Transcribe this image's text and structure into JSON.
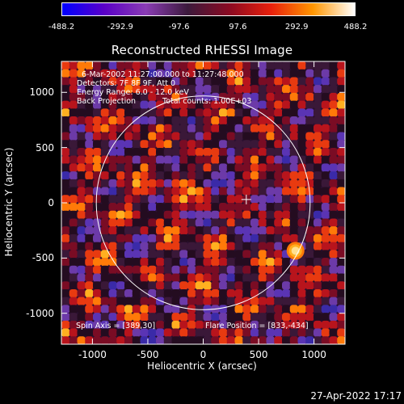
{
  "colorbar": {
    "min": -488.2,
    "max": 488.2,
    "tick_labels": [
      "-488.2",
      "-292.9",
      "-97.6",
      "97.6",
      "292.9",
      "488.2"
    ],
    "colors": [
      "#0000ff",
      "#5a00c8",
      "#8a3cb4",
      "#3c1a3c",
      "#8a0a22",
      "#e8200c",
      "#ff9600",
      "#ffffff"
    ]
  },
  "chart_data": {
    "type": "heatmap",
    "title": "Reconstructed RHESSI Image",
    "xlabel": "Heliocentric X (arcsec)",
    "ylabel": "Heliocentric Y (arcsec)",
    "xlim": [
      -1280,
      1280
    ],
    "ylim": [
      -1280,
      1280
    ],
    "x_ticks": [
      "-1000",
      "-500",
      "0",
      "500",
      "1000"
    ],
    "y_ticks": [
      "1000",
      "500",
      "0",
      "-500",
      "-1000"
    ],
    "x_tick_values": [
      -1000,
      -500,
      0,
      500,
      1000
    ],
    "y_tick_values": [
      1000,
      500,
      0,
      -500,
      -1000
    ],
    "solar_disk": {
      "center": [
        0,
        0
      ],
      "radius_arcsec": 965
    },
    "spin_axis_marker": [
      389,
      30
    ],
    "flare_position": [
      833,
      -434
    ],
    "annotations": {
      "date": "6-Mar-2002 11:27:00.000 to 11:27:48.000",
      "detectors": "Detectors: 7F 8F 9F, Att 0",
      "energy": "Energy Range: 6.0 - 12.0 keV",
      "method": "Back Projection",
      "counts": "Total counts: 1.00E+03",
      "spin_axis": "Spin Axis = [389,30]",
      "flare_pos": "Flare Position = [833,-434]"
    }
  },
  "timestamp": "27-Apr-2022 17:17"
}
